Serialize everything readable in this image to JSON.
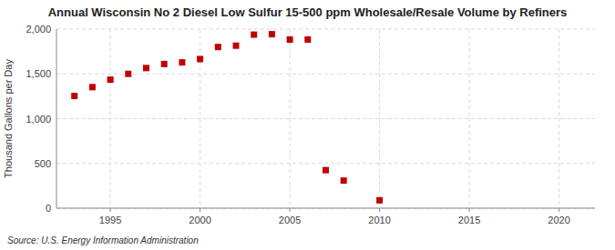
{
  "chart_data": {
    "type": "scatter",
    "title": "Annual Wisconsin No 2 Diesel Low Sulfur 15-500 ppm Wholesale/Resale Volume by Refiners",
    "ylabel": "Thousand Gallons per Day",
    "source": "Source: U.S. Energy Information Administration",
    "x": [
      1993,
      1994,
      1995,
      1996,
      1997,
      1998,
      1999,
      2000,
      2001,
      2002,
      2003,
      2004,
      2005,
      2006,
      2007,
      2008,
      2010
    ],
    "values": [
      1253,
      1352,
      1435,
      1500,
      1565,
      1610,
      1628,
      1665,
      1800,
      1815,
      1938,
      1943,
      1883,
      1883,
      425,
      308,
      88
    ],
    "color": "#c00000",
    "marker": "square",
    "xlim": [
      1992,
      2022
    ],
    "xticks": [
      1995,
      2000,
      2005,
      2010,
      2015,
      2020
    ],
    "ylim": [
      0,
      2000
    ],
    "yticks": [
      0,
      500,
      {
        "value": 1000,
        "label": "1,000"
      },
      {
        "value": 1500,
        "label": "1,500"
      },
      {
        "value": 2000,
        "label": "2,000"
      }
    ],
    "grid": true
  }
}
